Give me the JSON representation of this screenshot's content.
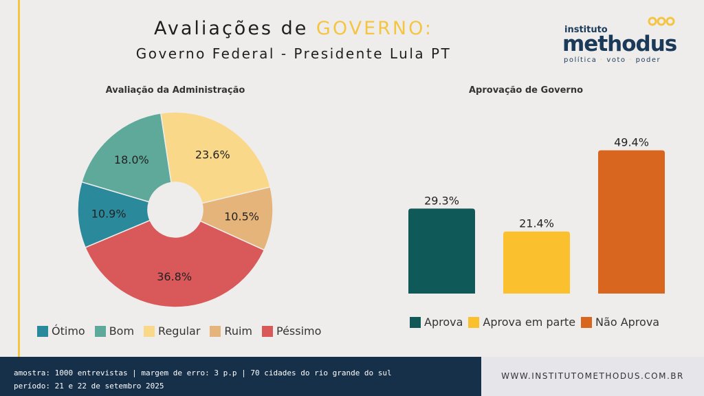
{
  "header": {
    "title_prefix": "Avaliações de ",
    "title_accent": "GOVERNO:",
    "subtitle": "Governo Federal - Presidente Lula PT"
  },
  "logo": {
    "small": "instituto",
    "big": "methodus",
    "tag_1": "política",
    "tag_sep": "·",
    "tag_2": "voto",
    "tag_3": "poder"
  },
  "chart_data": [
    {
      "type": "pie",
      "title": "Avaliação da Administração",
      "categories": [
        "Ótimo",
        "Bom",
        "Regular",
        "Ruim",
        "Péssimo"
      ],
      "values": [
        10.9,
        18.0,
        23.6,
        10.5,
        36.8
      ],
      "labels": [
        "10.9%",
        "18.0%",
        "23.6%",
        "10.5%",
        "36.8%"
      ],
      "colors": [
        "#2a8a9c",
        "#5fa99a",
        "#f9d88a",
        "#e5b47a",
        "#d9585a"
      ],
      "donut": true,
      "legend_position": "bottom"
    },
    {
      "type": "bar",
      "title": "Aprovação de Governo",
      "categories": [
        "Aprova",
        "Aprova em parte",
        "Não Aprova"
      ],
      "values": [
        29.3,
        21.4,
        49.4
      ],
      "labels": [
        "29.3%",
        "21.4%",
        "49.4%"
      ],
      "colors": [
        "#0f5a58",
        "#fbc02d",
        "#d9661f"
      ],
      "ylim": [
        0,
        55
      ],
      "grid": false,
      "legend_position": "bottom"
    }
  ],
  "footer": {
    "line1": "amostra: 1000 entrevistas | margem de erro: 3 p.p | 70 cidades do rio grande do sul",
    "line2": "período: 21 e 22 de setembro 2025",
    "website": "WWW.INSTITUTOMETHODUS.COM.BR"
  }
}
